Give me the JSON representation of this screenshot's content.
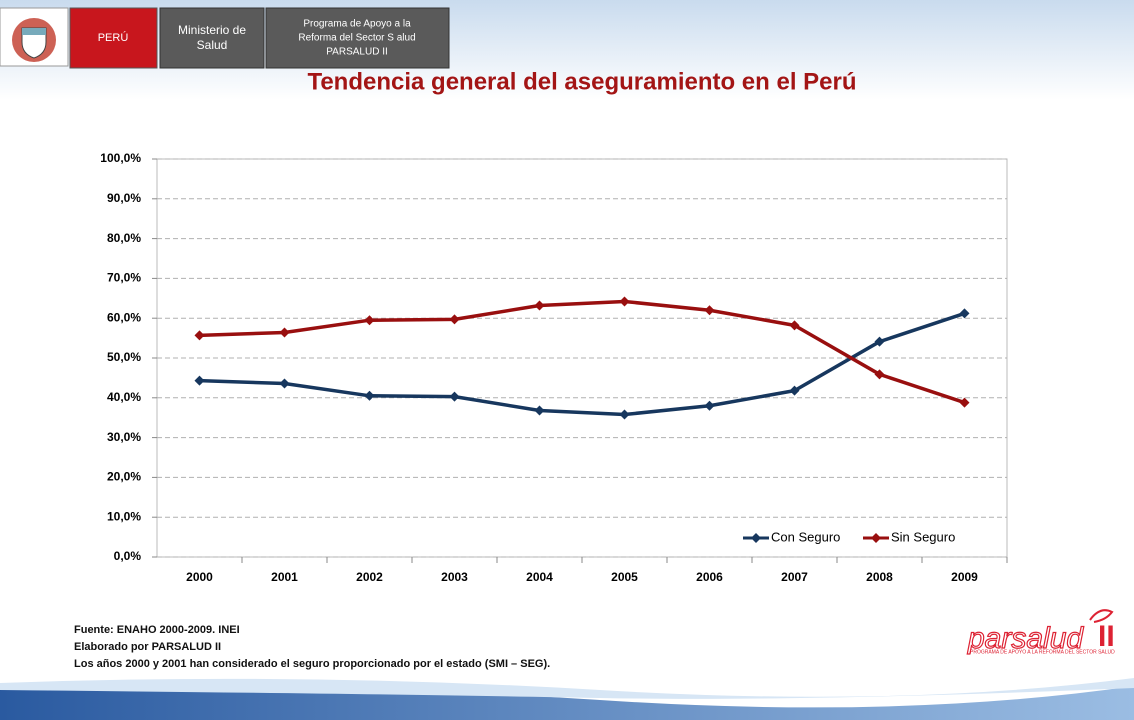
{
  "header": {
    "country": "PERÚ",
    "ministry": [
      "Ministerio de",
      "Salud"
    ],
    "program": [
      "Programa de Apoyo a la",
      "Reforma del Sector S alud",
      "PARSALUD  II"
    ]
  },
  "chart_data": {
    "type": "line",
    "title": "Tendencia general del aseguramiento en el Perú",
    "categories": [
      "2000",
      "2001",
      "2002",
      "2003",
      "2004",
      "2005",
      "2006",
      "2007",
      "2008",
      "2009"
    ],
    "series": [
      {
        "name": "Con Seguro",
        "color": "#17375e",
        "values": [
          44.3,
          43.6,
          40.5,
          40.3,
          36.8,
          35.8,
          38.0,
          41.8,
          54.1,
          61.2
        ]
      },
      {
        "name": "Sin Seguro",
        "color": "#990f0f",
        "values": [
          55.7,
          56.4,
          59.5,
          59.7,
          63.2,
          64.2,
          62.0,
          58.2,
          45.9,
          38.8
        ]
      }
    ],
    "ylim": [
      0,
      100
    ],
    "yticks": [
      {
        "value": 0,
        "label": "0,0%"
      },
      {
        "value": 10,
        "label": "10,0%"
      },
      {
        "value": 20,
        "label": "20,0%"
      },
      {
        "value": 30,
        "label": "30,0%"
      },
      {
        "value": 40,
        "label": "40,0%"
      },
      {
        "value": 50,
        "label": "50,0%"
      },
      {
        "value": 60,
        "label": "60,0%"
      },
      {
        "value": 70,
        "label": "70,0%"
      },
      {
        "value": 80,
        "label": "80,0%"
      },
      {
        "value": 90,
        "label": "90,0%"
      },
      {
        "value": 100,
        "label": "100,0%"
      }
    ],
    "grid": true,
    "legend": "lower right"
  },
  "notes": [
    "Fuente: ENAHO 2000-2009.  INEI",
    "Elaborado por PARSALUD II",
    "Los años 2000 y 2001 han considerado el seguro proporcionado por el estado (SMI – SEG)."
  ],
  "logo": {
    "text": "parsalud",
    "numeral": "II",
    "tagline": "PROGRAMA DE APOYO A LA REFORMA DEL SECTOR SALUD"
  }
}
